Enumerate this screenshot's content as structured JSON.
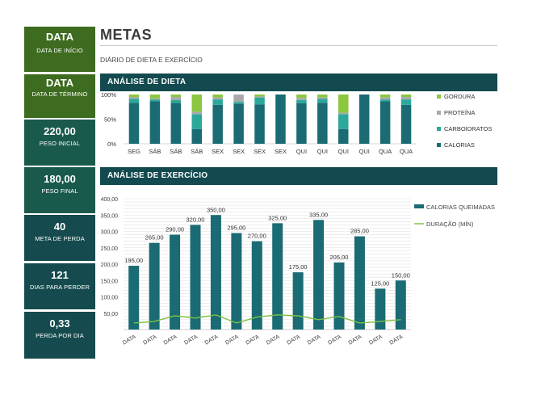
{
  "header": {
    "title": "METAS",
    "subtitle": "DIÁRIO DE DIETA E EXERCÍCIO"
  },
  "sidebar": [
    {
      "value": "DATA",
      "label": "DATA DE INÍCIO",
      "color": "#3d6b1f"
    },
    {
      "value": "DATA",
      "label": "DATA DE TÉRMINO",
      "color": "#3d6b1f"
    },
    {
      "value": "220,00",
      "label": "PESO INICIAL",
      "color": "#1a5a4d"
    },
    {
      "value": "180,00",
      "label": "PESO FINAL",
      "color": "#1a5a4d"
    },
    {
      "value": "40",
      "label": "META DE PERDA",
      "color": "#154b4e"
    },
    {
      "value": "121",
      "label": "DIAS PARA PERDER",
      "color": "#154b4e"
    },
    {
      "value": "0,33",
      "label": "PERDA POR DIA",
      "color": "#154b4e"
    }
  ],
  "sections": {
    "diet": "ANÁLISE DE DIETA",
    "exercise": "ANÁLISE DE EXERCÍCIO"
  },
  "chart_data": [
    {
      "type": "bar",
      "stacked": "percent",
      "categories": [
        "SEG",
        "SÁB",
        "SÁB",
        "SÁB",
        "SEX",
        "SEX",
        "SEX",
        "SEX",
        "QUI",
        "QUI",
        "QUI",
        "QUI",
        "QUA",
        "QUA"
      ],
      "ylim": [
        0,
        100
      ],
      "yticks": [
        "0%",
        "50%",
        "100%"
      ],
      "legend_position": "right",
      "series": [
        {
          "name": "CALORIAS",
          "color": "#1a6b73",
          "values": [
            83,
            86,
            83,
            30,
            79,
            81,
            80,
            100,
            82,
            83,
            30,
            100,
            86,
            79
          ]
        },
        {
          "name": "CARBOIDRATOS",
          "color": "#2aa99a",
          "values": [
            8,
            4,
            6,
            30,
            11,
            4,
            14,
            0,
            7,
            8,
            30,
            0,
            4,
            11
          ]
        },
        {
          "name": "PROTEÍNA",
          "color": "#a7a9ac",
          "values": [
            4,
            2,
            6,
            5,
            4,
            15,
            2,
            0,
            4,
            3,
            3,
            0,
            4,
            5
          ]
        },
        {
          "name": "GORDURA",
          "color": "#8cc63f",
          "values": [
            5,
            8,
            5,
            35,
            6,
            0,
            4,
            0,
            7,
            6,
            37,
            0,
            6,
            5
          ]
        }
      ]
    },
    {
      "type": "bar",
      "categories": [
        "DATA",
        "DATA",
        "DATA",
        "DATA",
        "DATA",
        "DATA",
        "DATA",
        "DATA",
        "DATA",
        "DATA",
        "DATA",
        "DATA",
        "DATA",
        "DATA"
      ],
      "ylim": [
        0,
        400
      ],
      "yticks": [
        "",
        "50,00",
        "100,00",
        "150,00",
        "200,00",
        "250,00",
        "300,00",
        "350,00",
        "400,00"
      ],
      "legend_position": "right",
      "series": [
        {
          "name": "CALORIAS QUEIMADAS",
          "kind": "bar",
          "color": "#1a6b73",
          "values": [
            195,
            265,
            290,
            320,
            350,
            295,
            270,
            325,
            175,
            335,
            205,
            285,
            125,
            150
          ],
          "labels": [
            "195,00",
            "265,00",
            "290,00",
            "320,00",
            "350,00",
            "295,00",
            "270,00",
            "325,00",
            "175,00",
            "335,00",
            "205,00",
            "285,00",
            "125,00",
            "150,00"
          ]
        },
        {
          "name": "DURAÇÃO (MÍN)",
          "kind": "line",
          "color": "#7dc242",
          "values": [
            20,
            25,
            42,
            35,
            45,
            20,
            38,
            45,
            42,
            30,
            40,
            20,
            25,
            30
          ]
        }
      ]
    }
  ]
}
